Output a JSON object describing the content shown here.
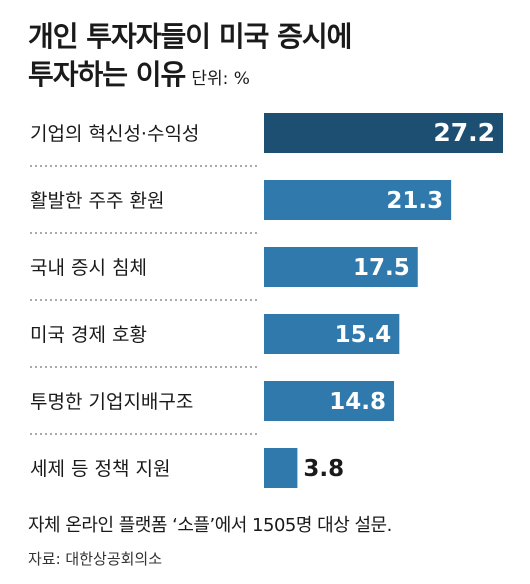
{
  "title_line1": "개인 투자자들이 미국 증시에",
  "title_line2": "투자하는 이유",
  "unit_label": "단위: %",
  "note": "자체 온라인 플랫폼 ‘소플’에서 1505명 대상 설문.",
  "source": "자료: 대한상공회의소",
  "colors": {
    "top_bar": "#1d4f72",
    "bars": "#2f79ad",
    "divider": "#555555",
    "inside_label": "#ffffff",
    "outside_label": "#1a1a1a"
  },
  "chart_data": {
    "type": "bar",
    "orientation": "horizontal",
    "categories": [
      "기업의 혁신성·수익성",
      "활발한 주주 환원",
      "국내 증시 침체",
      "미국 경제 호황",
      "투명한 기업지배구조",
      "세제 등 정책 지원"
    ],
    "values": [
      27.2,
      21.3,
      17.5,
      15.4,
      14.8,
      3.8
    ],
    "value_labels": [
      "27.2",
      "21.3",
      "17.5",
      "15.4",
      "14.8",
      "3.8"
    ],
    "xlim": [
      0,
      27.2
    ],
    "unit": "%",
    "grid": false,
    "legend": "none"
  }
}
